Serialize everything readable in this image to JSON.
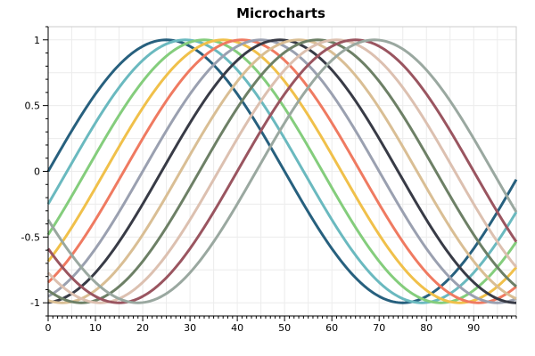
{
  "chart_data": {
    "type": "line",
    "title": "Microcharts",
    "xlabel": "",
    "ylabel": "",
    "xlim": [
      0,
      99
    ],
    "ylim": [
      -1.1,
      1.1
    ],
    "grid": true,
    "legend": "none",
    "x_ticks": [
      "0",
      "10",
      "20",
      "30",
      "40",
      "50",
      "60",
      "70",
      "80",
      "90"
    ],
    "y_ticks": [
      "1",
      "0.5",
      "0",
      "-0.5",
      "-1"
    ],
    "function": "y = sin(2*pi*(x + phase)/100)",
    "series": [
      {
        "phase": 0,
        "color": "#27607e"
      },
      {
        "phase": -4,
        "color": "#6ab9bf"
      },
      {
        "phase": -8,
        "color": "#84cd7c"
      },
      {
        "phase": -12,
        "color": "#f0c04a"
      },
      {
        "phase": -16,
        "color": "#ef7a61"
      },
      {
        "phase": -20,
        "color": "#9aa0b0"
      },
      {
        "phase": -24,
        "color": "#383b46"
      },
      {
        "phase": -28,
        "color": "#d9be94"
      },
      {
        "phase": -32,
        "color": "#6d8066"
      },
      {
        "phase": -36,
        "color": "#dcc0b0"
      },
      {
        "phase": -40,
        "color": "#9a5560"
      },
      {
        "phase": -44,
        "color": "#9aa8a0"
      }
    ]
  }
}
